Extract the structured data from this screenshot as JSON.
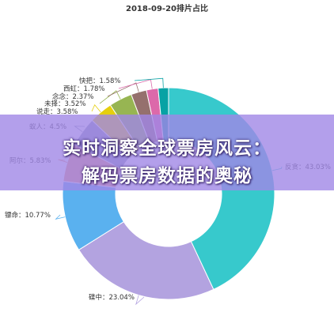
{
  "chart_data": {
    "type": "pie",
    "title": "2018-09-20排片占比",
    "slices": [
      {
        "label": "反贪",
        "value": 43.03,
        "display": "反贪：43.03%",
        "color": "#37c9cc"
      },
      {
        "label": "碟中",
        "value": 23.04,
        "display": "碟中：23.04%",
        "color": "#b3a3e0"
      },
      {
        "label": "镖命",
        "value": 10.77,
        "display": "镖命：10.77%",
        "color": "#5ab1ef"
      },
      {
        "label": "阿尔",
        "value": 5.83,
        "display": "阿尔：5.83%",
        "color": "#ed9572"
      },
      {
        "label": "蚁人",
        "value": 4.5,
        "display": "蚁人：4.5%",
        "color": "#8d98b3"
      },
      {
        "label": "说走",
        "value": 3.58,
        "display": "说走：3.58%",
        "color": "#e5cf0d"
      },
      {
        "label": "未择",
        "value": 3.52,
        "display": "未择：3.52%",
        "color": "#97b552"
      },
      {
        "label": "念念",
        "value": 2.37,
        "display": "念念：2.37%",
        "color": "#95706d"
      },
      {
        "label": "西虹",
        "value": 1.78,
        "display": "西虹：1.78%",
        "color": "#dc69aa"
      },
      {
        "label": "快把",
        "value": 1.58,
        "display": "快把：1.58%",
        "color": "#07a2a4"
      }
    ],
    "inner_radius_ratio": 0.5,
    "legend": "none"
  },
  "banner": {
    "line1": "实时洞察全球票房风云：",
    "line2": "解码票房数据的奥秘"
  }
}
